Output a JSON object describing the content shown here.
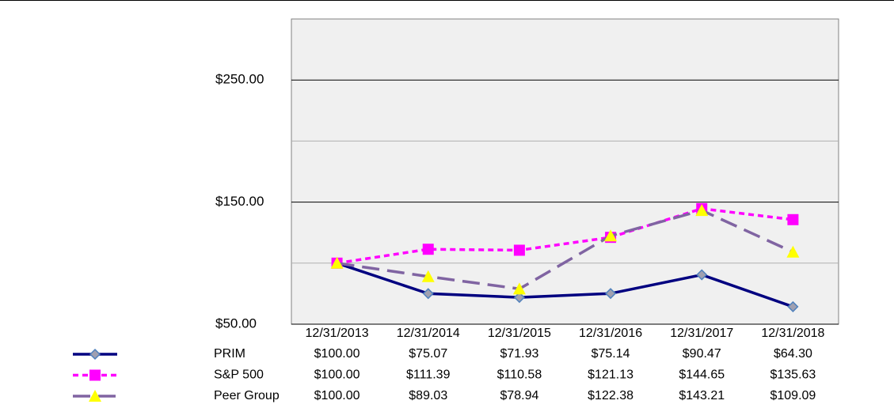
{
  "chart_data": {
    "type": "line",
    "categories": [
      "12/31/2013",
      "12/31/2014",
      "12/31/2015",
      "12/31/2016",
      "12/31/2017",
      "12/31/2018"
    ],
    "series": [
      {
        "name": "PRIM",
        "color": "#000080",
        "marker": "diamond",
        "dash": "solid",
        "values": [
          100.0,
          75.07,
          71.93,
          75.14,
          90.47,
          64.3
        ],
        "value_labels": [
          "$100.00",
          "$75.07",
          "$71.93",
          "$75.14",
          "$90.47",
          "$64.30"
        ]
      },
      {
        "name": "S&P 500",
        "color": "#ff00ff",
        "marker": "square",
        "dash": "short",
        "values": [
          100.0,
          111.39,
          110.58,
          121.13,
          144.65,
          135.63
        ],
        "value_labels": [
          "$100.00",
          "$111.39",
          "$110.58",
          "$121.13",
          "$144.65",
          "$135.63"
        ]
      },
      {
        "name": "Peer Group",
        "color": "#8064a2",
        "marker": "triangle",
        "dash": "long",
        "values": [
          100.0,
          89.03,
          78.94,
          122.38,
          143.21,
          109.09
        ],
        "value_labels": [
          "$100.00",
          "$89.03",
          "$78.94",
          "$122.38",
          "$143.21",
          "$109.09"
        ]
      }
    ],
    "ylim": [
      50,
      300
    ],
    "yticks": [
      {
        "value": 50,
        "label": "$50.00"
      },
      {
        "value": 150,
        "label": "$150.00"
      },
      {
        "value": 250,
        "label": "$250.00"
      }
    ],
    "minor_yticks": [
      100,
      200
    ],
    "grid": true
  }
}
